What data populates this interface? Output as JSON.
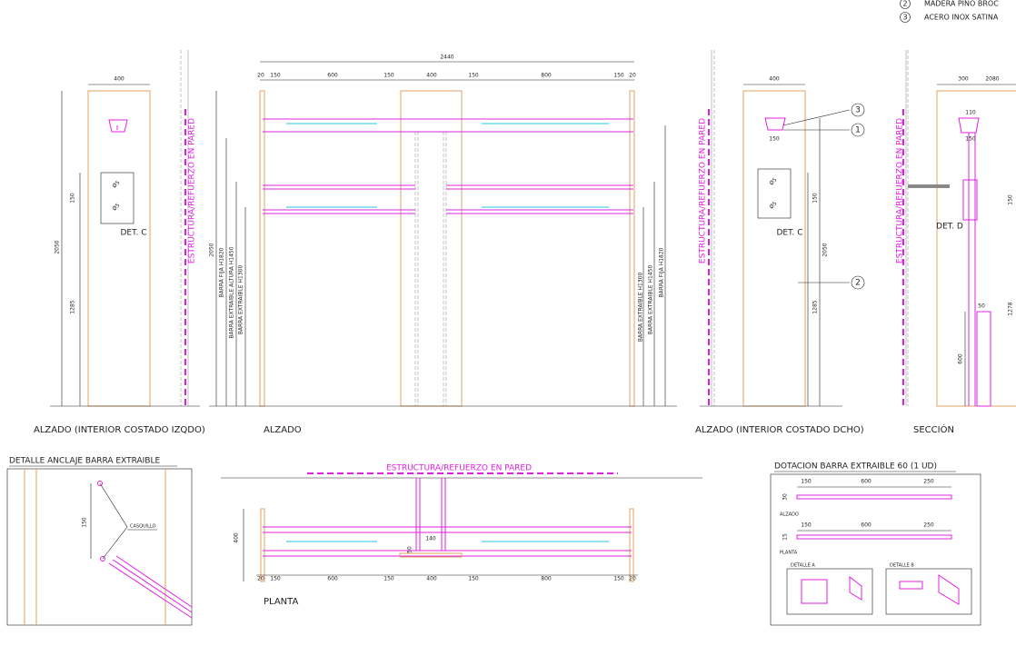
{
  "legend": [
    {
      "number": 2,
      "label": "MADERA PINO BROC"
    },
    {
      "number": 3,
      "label": "ACERO INOX SATINA"
    }
  ],
  "left_elevation": {
    "caption": "ALZADO (INTERIOR COSTADO IZQDO)",
    "width": 400,
    "dims": [
      150,
      2050,
      1285
    ],
    "hole_labels": [
      "Ø5",
      "Ø5"
    ],
    "detail": "DET. C",
    "wall_label": "ESTRUCTURA/REFUERZO EN PARED"
  },
  "front_elevation": {
    "caption": "ALZADO",
    "total_width": 2440,
    "widths": [
      20,
      150,
      600,
      150,
      400,
      150,
      800,
      150,
      20
    ],
    "height": 2050,
    "left_bars": [
      "BARRA FIJA H1820",
      "BARRA EXTRAIBLE ALTURA H1450",
      "BARRA EXTRAIBLE H1300"
    ],
    "right_bars": [
      "BARRA EXTRAIBLE H1300",
      "BARRA EXTRAIBLE H1450",
      "BARRA FIJA H1820"
    ]
  },
  "right_elevation": {
    "caption": "ALZADO (INTERIOR COSTADO DCHO)",
    "width": 400,
    "hanger_width": 150,
    "dims": [
      150,
      2050,
      1285
    ],
    "hole_labels": [
      "Ø5",
      "Ø5"
    ],
    "detail": "DET. C",
    "wall_label": "ESTRUCTURA/REFUERZO EN PARED",
    "callouts": [
      3,
      1,
      2
    ]
  },
  "section": {
    "caption": "SECCIÓN",
    "widths": [
      300,
      2080
    ],
    "hanger_dims": [
      110,
      150
    ],
    "detail": "DET. D",
    "dims": [
      50,
      150,
      1278,
      600
    ],
    "wall_label": "ESTRUCTURA/REFUERZO EN PARED"
  },
  "anchor_detail": {
    "title": "DETALLE ANCLAJE BARRA EXTRAIBLE",
    "dim": 150,
    "label": "CASQUILLO"
  },
  "plan": {
    "caption": "PLANTA",
    "wall_label": "ESTRUCTURA/REFUERZO EN PARED",
    "depth": 400,
    "dims": [
      140,
      50
    ],
    "widths": [
      20,
      150,
      600,
      150,
      400,
      150,
      800,
      150,
      20
    ]
  },
  "bar_kit": {
    "title": "DOTACION BARRA EXTRAIBLE 60 (1 UD)",
    "elevation": {
      "label": "ALZADO",
      "widths": [
        150,
        600,
        250
      ],
      "height": 30
    },
    "plan": {
      "label": "PLANTA",
      "widths": [
        150,
        600,
        250
      ],
      "height": 15
    },
    "details": [
      "DETALLE A",
      "DETALLE B"
    ]
  }
}
